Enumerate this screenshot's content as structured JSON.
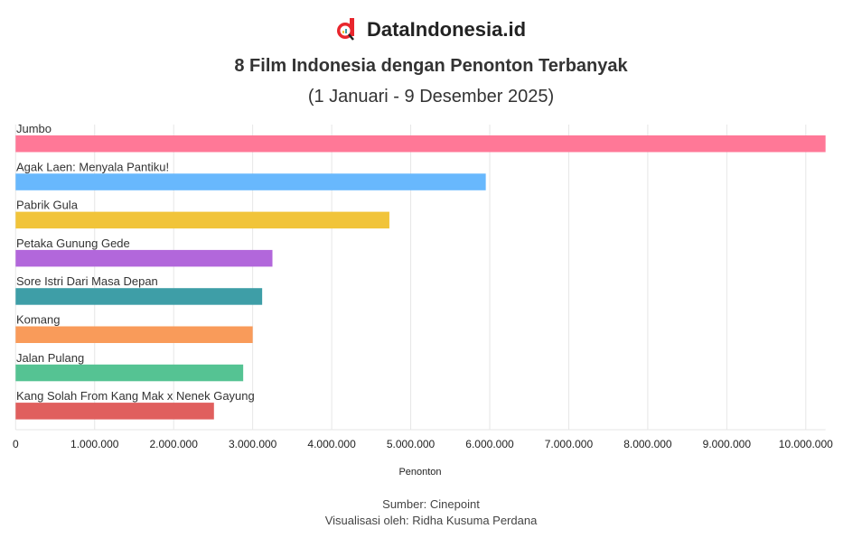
{
  "brand": {
    "name": "DataIndonesia.id",
    "accent": "#e8262d"
  },
  "chart_data": {
    "type": "bar",
    "orientation": "horizontal",
    "title": "8 Film Indonesia dengan Penonton Terbanyak",
    "subtitle": "(1 Januari - 9 Desember 2025)",
    "xlabel": "Penonton",
    "ylabel": "",
    "xlim": [
      0,
      10250000
    ],
    "grid": true,
    "xticks": [
      0,
      1000000,
      2000000,
      3000000,
      4000000,
      5000000,
      6000000,
      7000000,
      8000000,
      9000000,
      10000000
    ],
    "xtick_labels": [
      "0",
      "1.000.000",
      "2.000.000",
      "3.000.000",
      "4.000.000",
      "5.000.000",
      "6.000.000",
      "7.000.000",
      "8.000.000",
      "9.000.000",
      "10.000.000"
    ],
    "categories": [
      "Jumbo",
      "Agak Laen: Menyala Pantiku!",
      "Pabrik Gula",
      "Petaka Gunung Gede",
      "Sore Istri Dari Masa Depan",
      "Komang",
      "Jalan Pulang",
      "Kang Solah From Kang Mak x Nenek Gayung"
    ],
    "values": [
      10250000,
      5950000,
      4730000,
      3250000,
      3120000,
      3000000,
      2880000,
      2510000
    ],
    "colors": [
      "#ff7897",
      "#68b8fd",
      "#f1c43a",
      "#b267db",
      "#3e9ea7",
      "#f99b5a",
      "#55c393",
      "#e05f5e"
    ]
  },
  "footer": {
    "source": "Sumber: Cinepoint",
    "credit": "Visualisasi oleh: Ridha Kusuma Perdana"
  }
}
